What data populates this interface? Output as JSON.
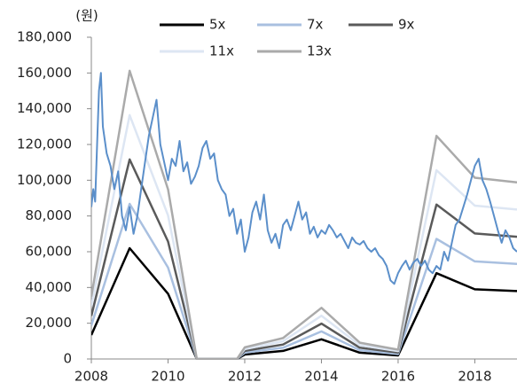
{
  "chart_data": {
    "type": "line",
    "y_label": "(원)",
    "x": [
      2008,
      2009,
      2010,
      2010.75,
      2011.8,
      2012,
      2013,
      2014,
      2015,
      2016,
      2017,
      2018,
      2019.1
    ],
    "series": [
      {
        "name": "5x",
        "color": "#000000",
        "values": [
          13400,
          62000,
          36500,
          0,
          0,
          2500,
          4500,
          11000,
          3500,
          2000,
          48000,
          39000,
          38000
        ]
      },
      {
        "name": "7x",
        "color": "#a9c0e0",
        "values": [
          18760,
          86800,
          51100,
          0,
          0,
          3500,
          6300,
          15400,
          4900,
          2800,
          67200,
          54600,
          53200
        ]
      },
      {
        "name": "9x",
        "color": "#5a5a5a",
        "values": [
          24120,
          111600,
          65700,
          0,
          0,
          4500,
          8100,
          19800,
          6300,
          3600,
          86400,
          70200,
          68400
        ]
      },
      {
        "name": "11x",
        "color": "#dde6f3",
        "values": [
          29480,
          136400,
          80300,
          0,
          0,
          5500,
          9900,
          24200,
          7700,
          4400,
          105600,
          85800,
          83600
        ]
      },
      {
        "name": "13x",
        "color": "#aaaaaa",
        "values": [
          34840,
          161200,
          94900,
          0,
          0,
          6500,
          11700,
          28600,
          9100,
          5200,
          124800,
          101400,
          98800
        ]
      },
      {
        "color": "#5b8fca",
        "x": [
          2008.0,
          2008.05,
          2008.1,
          2008.15,
          2008.2,
          2008.25,
          2008.3,
          2008.4,
          2008.5,
          2008.6,
          2008.7,
          2008.8,
          2008.9,
          2009.0,
          2009.1,
          2009.2,
          2009.3,
          2009.4,
          2009.5,
          2009.6,
          2009.7,
          2009.8,
          2009.9,
          2010.0,
          2010.1,
          2010.2,
          2010.3,
          2010.4,
          2010.5,
          2010.6,
          2010.7,
          2010.8,
          2010.9,
          2011.0,
          2011.1,
          2011.2,
          2011.3,
          2011.4,
          2011.5,
          2011.6,
          2011.7,
          2011.8,
          2011.9,
          2012.0,
          2012.1,
          2012.2,
          2012.3,
          2012.4,
          2012.5,
          2012.6,
          2012.7,
          2012.8,
          2012.9,
          2013.0,
          2013.1,
          2013.2,
          2013.3,
          2013.4,
          2013.5,
          2013.6,
          2013.7,
          2013.8,
          2013.9,
          2014.0,
          2014.1,
          2014.2,
          2014.3,
          2014.4,
          2014.5,
          2014.6,
          2014.7,
          2014.8,
          2014.9,
          2015.0,
          2015.1,
          2015.2,
          2015.3,
          2015.4,
          2015.5,
          2015.6,
          2015.7,
          2015.8,
          2015.9,
          2016.0,
          2016.1,
          2016.2,
          2016.3,
          2016.4,
          2016.5,
          2016.6,
          2016.7,
          2016.8,
          2016.9,
          2017.0,
          2017.1,
          2017.2,
          2017.3,
          2017.4,
          2017.5,
          2017.6,
          2017.7,
          2017.8,
          2017.9,
          2018.0,
          2018.1,
          2018.2,
          2018.3,
          2018.4,
          2018.5,
          2018.6,
          2018.7,
          2018.8,
          2018.9,
          2019.0,
          2019.1
        ],
        "values": [
          85000,
          95000,
          88000,
          120000,
          150000,
          160000,
          130000,
          115000,
          108000,
          95000,
          105000,
          80000,
          72000,
          85000,
          70000,
          80000,
          95000,
          110000,
          125000,
          135000,
          145000,
          120000,
          110000,
          100000,
          112000,
          108000,
          122000,
          105000,
          110000,
          98000,
          102000,
          108000,
          118000,
          122000,
          112000,
          115000,
          100000,
          95000,
          92000,
          80000,
          84000,
          70000,
          78000,
          60000,
          68000,
          82000,
          88000,
          78000,
          92000,
          72000,
          65000,
          70000,
          62000,
          75000,
          78000,
          72000,
          80000,
          88000,
          78000,
          82000,
          70000,
          74000,
          68000,
          72000,
          70000,
          75000,
          72000,
          68000,
          70000,
          66000,
          62000,
          68000,
          65000,
          64000,
          66000,
          62000,
          60000,
          62000,
          58000,
          56000,
          52000,
          44000,
          42000,
          48000,
          52000,
          55000,
          50000,
          54000,
          56000,
          52000,
          55000,
          50000,
          48000,
          52000,
          50000,
          60000,
          55000,
          65000,
          75000,
          78000,
          85000,
          92000,
          100000,
          108000,
          112000,
          100000,
          95000,
          88000,
          80000,
          72000,
          65000,
          72000,
          68000,
          62000,
          60000
        ]
      }
    ],
    "xlim": [
      2008,
      2019.1
    ],
    "xticks": [
      2008,
      2010,
      2012,
      2014,
      2016,
      2018
    ],
    "ylim": [
      0,
      180000
    ],
    "yticks": [
      0,
      {
        "value": 20000,
        "label": "20,000"
      },
      {
        "value": 40000,
        "label": "40,000"
      },
      {
        "value": 60000,
        "label": "60,000"
      },
      {
        "value": 80000,
        "label": "80,000"
      },
      {
        "value": 100000,
        "label": "100,000"
      },
      {
        "value": 120000,
        "label": "120,000"
      },
      {
        "value": 140000,
        "label": "140,000"
      },
      {
        "value": 160000,
        "label": "160,000"
      },
      {
        "value": 180000,
        "label": "180,000"
      }
    ],
    "grid": false
  }
}
